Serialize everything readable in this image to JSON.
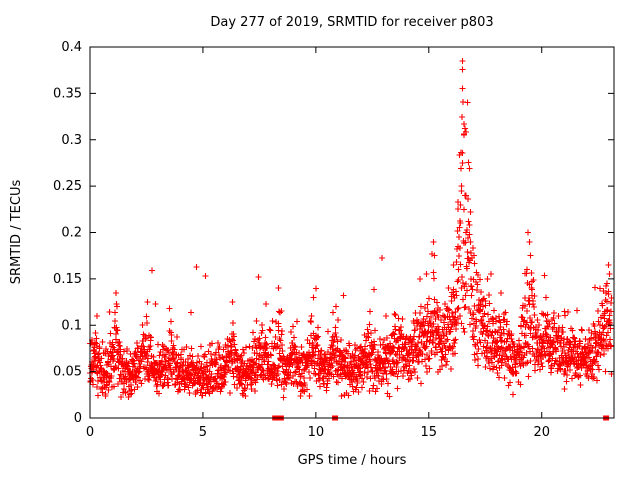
{
  "chart_data": {
    "type": "scatter",
    "title": "Day 277 of 2019, SRMTID for receiver p803",
    "xlabel": "GPS time / hours",
    "ylabel": "SRMTID / TECUs",
    "xlim": [
      0,
      23.2
    ],
    "ylim": [
      0,
      0.4
    ],
    "xticks": [
      0,
      5,
      10,
      15,
      20
    ],
    "xtick_labels": [
      "0",
      "5",
      "10",
      "15",
      "20"
    ],
    "yticks": [
      0,
      0.05,
      0.1,
      0.15,
      0.2,
      0.25,
      0.3,
      0.35,
      0.4
    ],
    "ytick_labels": [
      "0",
      "0.05",
      "0.1",
      "0.15",
      "0.2",
      "0.25",
      "0.3",
      "0.35",
      "0.4"
    ],
    "grid": false,
    "legend": "none",
    "axis_color": "#000000",
    "background_color": "#ffffff",
    "marker": {
      "shape": "plus",
      "color": "#ff0000",
      "half_size": 3,
      "stroke_width": 1.1
    },
    "series": [
      {
        "name": "SRMTID",
        "color": "#ff0000"
      }
    ],
    "notable_points": [
      [
        16.5,
        0.355
      ],
      [
        16.55,
        0.305
      ],
      [
        16.5,
        0.275
      ],
      [
        16.45,
        0.25
      ],
      [
        16.6,
        0.24
      ],
      [
        16.55,
        0.225
      ],
      [
        16.4,
        0.21
      ],
      [
        16.65,
        0.2
      ],
      [
        16.3,
        0.185
      ],
      [
        16.85,
        0.19
      ],
      [
        17.0,
        0.175
      ],
      [
        15.2,
        0.19
      ],
      [
        15.25,
        0.175
      ],
      [
        14.9,
        0.155
      ],
      [
        14.6,
        0.15
      ],
      [
        16.1,
        0.165
      ],
      [
        19.4,
        0.2
      ],
      [
        19.45,
        0.19
      ],
      [
        19.5,
        0.175
      ],
      [
        19.35,
        0.16
      ],
      [
        22.95,
        0.165
      ],
      [
        23.0,
        0.155
      ],
      [
        22.9,
        0.145
      ],
      [
        22.85,
        0.135
      ],
      [
        17.6,
        0.15
      ],
      [
        18.2,
        0.135
      ],
      [
        20.2,
        0.13
      ],
      [
        21.0,
        0.115
      ],
      [
        12.4,
        0.115
      ],
      [
        13.1,
        0.11
      ],
      [
        9.9,
        0.13
      ],
      [
        10.9,
        0.12
      ],
      [
        8.35,
        0.14
      ],
      [
        6.3,
        0.125
      ],
      [
        2.55,
        0.125
      ],
      [
        1.15,
        0.135
      ],
      [
        1.2,
        0.12
      ],
      [
        0.3,
        0.11
      ]
    ],
    "zero_flag_points_x": [
      8.2,
      8.45,
      10.85,
      22.85
    ],
    "scatter_model": {
      "seed": 20190277,
      "n_points": 2600,
      "x_max": 23.1,
      "base_mean": 0.048,
      "base_sigma": 0.012,
      "tail_prob": 0.12,
      "tail_scale": 0.02,
      "y_min": 0.022,
      "bumps": [
        {
          "x": 0.25,
          "w": 0.12,
          "a": 0.045
        },
        {
          "x": 1.15,
          "w": 0.15,
          "a": 0.07
        },
        {
          "x": 2.5,
          "w": 0.2,
          "a": 0.05
        },
        {
          "x": 3.6,
          "w": 0.15,
          "a": 0.03
        },
        {
          "x": 6.3,
          "w": 0.15,
          "a": 0.05
        },
        {
          "x": 7.6,
          "w": 0.25,
          "a": 0.045
        },
        {
          "x": 8.35,
          "w": 0.15,
          "a": 0.065
        },
        {
          "x": 9.0,
          "w": 0.15,
          "a": 0.04
        },
        {
          "x": 9.9,
          "w": 0.2,
          "a": 0.06
        },
        {
          "x": 10.9,
          "w": 0.2,
          "a": 0.05
        },
        {
          "x": 12.4,
          "w": 0.25,
          "a": 0.04
        },
        {
          "x": 13.5,
          "w": 0.3,
          "a": 0.035
        },
        {
          "x": 14.6,
          "w": 0.5,
          "a": 0.055
        },
        {
          "x": 15.2,
          "w": 0.2,
          "a": 0.1
        },
        {
          "x": 16.0,
          "w": 0.3,
          "a": 0.08
        },
        {
          "x": 16.55,
          "w": 0.22,
          "a": 0.26
        },
        {
          "x": 16.85,
          "w": 0.35,
          "a": 0.12
        },
        {
          "x": 17.6,
          "w": 0.3,
          "a": 0.06
        },
        {
          "x": 18.3,
          "w": 0.25,
          "a": 0.05
        },
        {
          "x": 19.45,
          "w": 0.25,
          "a": 0.12
        },
        {
          "x": 20.3,
          "w": 0.3,
          "a": 0.05
        },
        {
          "x": 21.2,
          "w": 0.5,
          "a": 0.035
        },
        {
          "x": 22.6,
          "w": 0.4,
          "a": 0.05
        },
        {
          "x": 23.0,
          "w": 0.25,
          "a": 0.08
        },
        {
          "x": 16.5,
          "w": 2.5,
          "a": 0.025
        },
        {
          "x": 20.5,
          "w": 2.0,
          "a": 0.015
        }
      ]
    }
  }
}
